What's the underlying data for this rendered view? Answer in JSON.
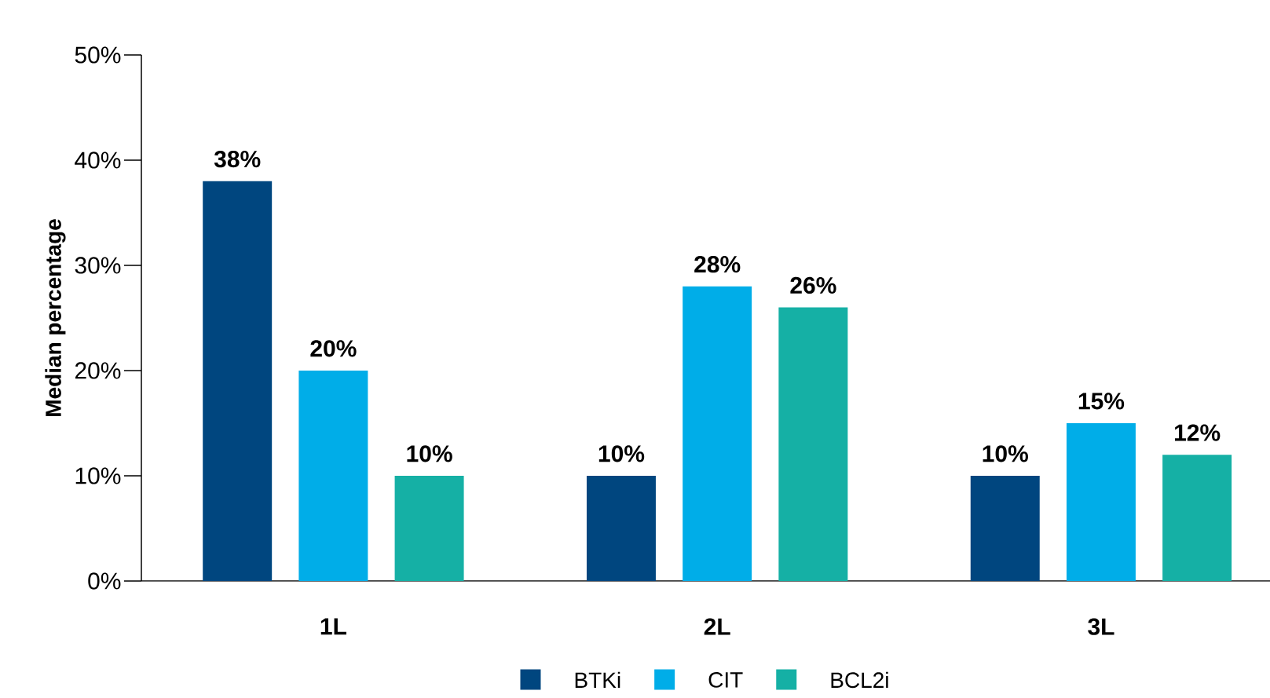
{
  "chart_data": {
    "type": "bar",
    "ylabel": "Median percentage",
    "categories": [
      "1L",
      "2L",
      "3L"
    ],
    "series": [
      {
        "name": "BTKi",
        "color": "#00467f",
        "values": [
          38,
          10,
          10
        ],
        "value_labels": [
          "38%",
          "10%",
          "10%"
        ]
      },
      {
        "name": "CIT",
        "color": "#00ade8",
        "values": [
          20,
          28,
          15
        ],
        "value_labels": [
          "20%",
          "28%",
          "15%"
        ]
      },
      {
        "name": "BCL2i",
        "color": "#15b0a5",
        "values": [
          10,
          26,
          12
        ],
        "value_labels": [
          "10%",
          "26%",
          "12%"
        ]
      }
    ],
    "ylim": [
      0,
      50
    ],
    "yticks": [
      {
        "value": 0,
        "label": "0%"
      },
      {
        "value": 10,
        "label": "10%"
      },
      {
        "value": 20,
        "label": "20%"
      },
      {
        "value": 30,
        "label": "30%"
      },
      {
        "value": 40,
        "label": "40%"
      },
      {
        "value": 50,
        "label": "50%"
      }
    ],
    "legend": "bottom"
  }
}
